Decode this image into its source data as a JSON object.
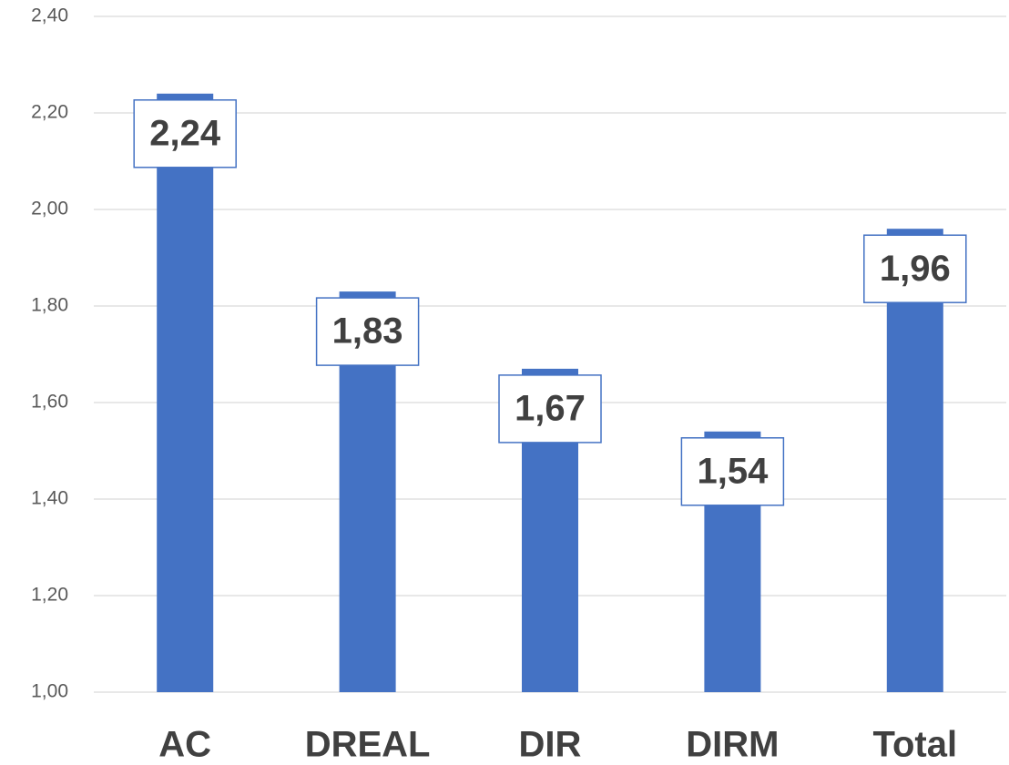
{
  "chart_data": {
    "type": "bar",
    "categories": [
      "AC",
      "DREAL",
      "DIR",
      "DIRM",
      "Total"
    ],
    "values": [
      2.24,
      1.83,
      1.67,
      1.54,
      1.96
    ],
    "value_labels": [
      "2,24",
      "1,83",
      "1,67",
      "1,54",
      "1,96"
    ],
    "color": "#4472c4",
    "ylim": [
      1.0,
      2.4
    ],
    "yticks": [
      {
        "value": 1.0,
        "label": "1,00"
      },
      {
        "value": 1.2,
        "label": "1,20"
      },
      {
        "value": 1.4,
        "label": "1,40"
      },
      {
        "value": 1.6,
        "label": "1,60"
      },
      {
        "value": 1.8,
        "label": "1,80"
      },
      {
        "value": 2.0,
        "label": "2,00"
      },
      {
        "value": 2.2,
        "label": "2,20"
      },
      {
        "value": 2.4,
        "label": "2,40"
      }
    ],
    "grid": true
  }
}
